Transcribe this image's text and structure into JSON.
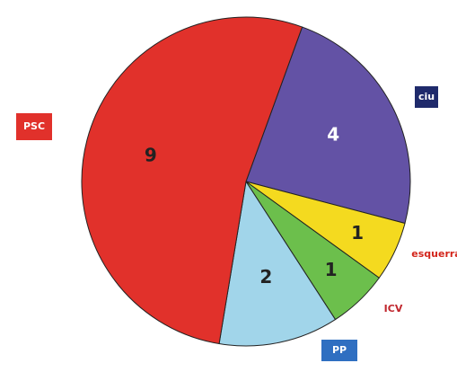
{
  "chart_data": {
    "type": "pie",
    "categories": [
      "ciu",
      "esquerra",
      "ICV",
      "PP",
      "PSC"
    ],
    "values": [
      4,
      1,
      1,
      2,
      9
    ],
    "colors": [
      "#6352a5",
      "#f4da1f",
      "#6cbf4c",
      "#a1d5ea",
      "#e1312b"
    ]
  }
}
